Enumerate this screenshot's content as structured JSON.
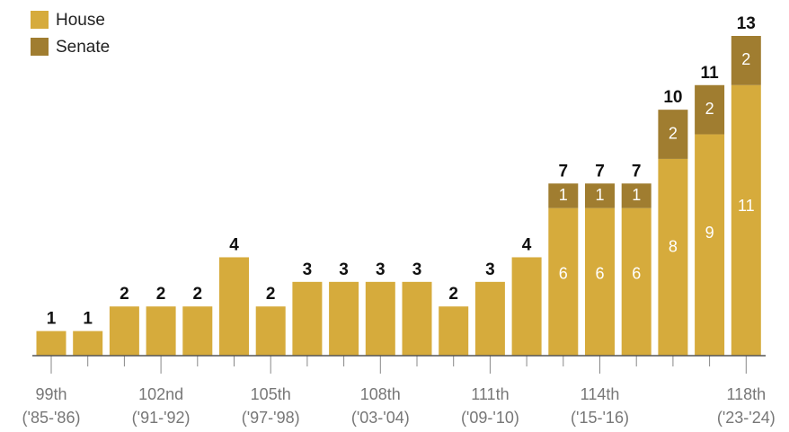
{
  "chart_data": {
    "type": "bar",
    "stacked": true,
    "categories": [
      "99th",
      null,
      null,
      "102nd",
      null,
      null,
      "105th",
      null,
      null,
      "108th",
      null,
      null,
      "111th",
      null,
      null,
      "114th",
      null,
      null,
      null,
      "118th"
    ],
    "category_years": [
      "('85-'86)",
      null,
      null,
      "('91-'92)",
      null,
      null,
      "('97-'98)",
      null,
      null,
      "('03-'04)",
      null,
      null,
      "('09-'10)",
      null,
      null,
      "('15-'16)",
      null,
      null,
      null,
      "('23-'24)"
    ],
    "series": [
      {
        "name": "House",
        "color": "#d6ab3c",
        "values": [
          1,
          1,
          2,
          2,
          2,
          4,
          2,
          3,
          3,
          3,
          3,
          2,
          3,
          4,
          6,
          6,
          6,
          8,
          9,
          11
        ],
        "value_labels": [
          null,
          null,
          null,
          null,
          null,
          null,
          null,
          null,
          null,
          null,
          null,
          null,
          null,
          null,
          "6",
          "6",
          "6",
          "8",
          "9",
          "11"
        ]
      },
      {
        "name": "Senate",
        "color": "#a07d30",
        "values": [
          0,
          0,
          0,
          0,
          0,
          0,
          0,
          0,
          0,
          0,
          0,
          0,
          0,
          0,
          1,
          1,
          1,
          2,
          2,
          2
        ],
        "value_labels": [
          null,
          null,
          null,
          null,
          null,
          null,
          null,
          null,
          null,
          null,
          null,
          null,
          null,
          null,
          "1",
          "1",
          "1",
          "2",
          "2",
          "2"
        ]
      }
    ],
    "totals": [
      1,
      1,
      2,
      2,
      2,
      4,
      2,
      3,
      3,
      3,
      3,
      2,
      3,
      4,
      7,
      7,
      7,
      10,
      11,
      13
    ],
    "ylim": [
      0,
      13
    ],
    "legend": "top-left"
  }
}
